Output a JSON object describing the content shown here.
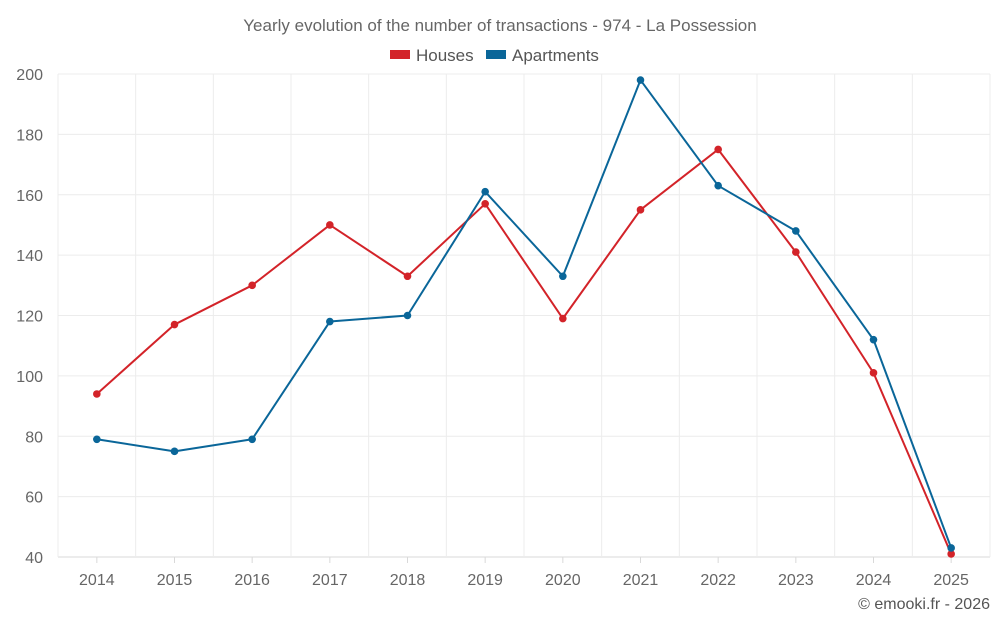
{
  "chart_data": {
    "type": "line",
    "title": "Yearly evolution of the number of transactions - 974 - La Possession",
    "categories": [
      "2014",
      "2015",
      "2016",
      "2017",
      "2018",
      "2019",
      "2020",
      "2021",
      "2022",
      "2023",
      "2024",
      "2025"
    ],
    "series": [
      {
        "name": "Houses",
        "color": "#d32329",
        "values": [
          94,
          117,
          130,
          150,
          133,
          157,
          119,
          155,
          175,
          141,
          101,
          41
        ]
      },
      {
        "name": "Apartments",
        "color": "#0a6699",
        "values": [
          79,
          75,
          79,
          118,
          120,
          161,
          133,
          198,
          163,
          148,
          112,
          43
        ]
      }
    ],
    "y_ticks": [
      "200",
      "180",
      "160",
      "140",
      "120",
      "100",
      "80",
      "60",
      "40"
    ],
    "ylim": [
      40,
      200
    ],
    "xlabel": "",
    "ylabel": "",
    "legend": "top-center",
    "grid": true
  },
  "credit": "© emooki.fr - 2026"
}
